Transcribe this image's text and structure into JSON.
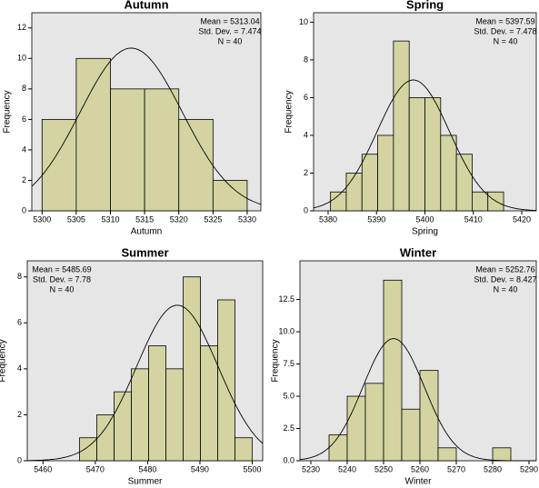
{
  "chart_data": [
    {
      "type": "histogram",
      "title": "Autumn",
      "xlabel": "Autumn",
      "ylabel": "Frequency",
      "bins": [
        5300,
        5305,
        5310,
        5315,
        5320,
        5325,
        5330
      ],
      "counts": [
        6,
        10,
        8,
        8,
        6,
        2
      ],
      "xlim": [
        5298.5,
        5332
      ],
      "xticks": [
        5300,
        5305,
        5310,
        5315,
        5320,
        5325,
        5330
      ],
      "ylim": [
        0,
        13
      ],
      "yticks": [
        0,
        2,
        4,
        6,
        8,
        10,
        12
      ],
      "annotations": [
        "Mean = 5313.04",
        "Std. Dev. = 7.474",
        "N = 40"
      ],
      "annotation_corner": "upper right",
      "normal_curve": {
        "mean": 5313.04,
        "std_dev": 7.474,
        "n": 40
      },
      "color": "#d4d4a2"
    },
    {
      "type": "histogram",
      "title": "Spring",
      "xlabel": "Spring",
      "ylabel": "Frequency",
      "bins": [
        5380.5,
        5383.75,
        5387,
        5390.25,
        5393.5,
        5396.75,
        5400,
        5403.25,
        5406.5,
        5409.75,
        5413,
        5416.25
      ],
      "counts": [
        1,
        2,
        3,
        4,
        9,
        6,
        6,
        4,
        3,
        1,
        1
      ],
      "xlim": [
        5377,
        5423
      ],
      "xticks": [
        5380,
        5390,
        5400,
        5410,
        5420
      ],
      "ylim": [
        0,
        10.5
      ],
      "yticks": [
        0,
        2,
        4,
        6,
        8,
        10
      ],
      "annotations": [
        "Mean = 5397.59",
        "Std. Dev. = 7.478",
        "N = 40"
      ],
      "annotation_corner": "upper right",
      "normal_curve": {
        "mean": 5397.59,
        "std_dev": 7.478,
        "n": 40
      },
      "color": "#d4d4a2"
    },
    {
      "type": "histogram",
      "title": "Summer",
      "xlabel": "Summer",
      "ylabel": "Frequency",
      "bins": [
        5467,
        5470.3,
        5473.6,
        5476.9,
        5480.2,
        5483.5,
        5486.8,
        5490.1,
        5493.4,
        5496.7,
        5500
      ],
      "counts": [
        1,
        2,
        3,
        4,
        5,
        4,
        8,
        5,
        7,
        1
      ],
      "xlim": [
        5457,
        5502
      ],
      "xticks": [
        5460,
        5470,
        5480,
        5490,
        5500
      ],
      "ylim": [
        0,
        8.7
      ],
      "yticks": [
        0,
        2,
        4,
        6,
        8
      ],
      "annotations": [
        "Mean = 5485.69",
        "Std. Dev. = 7.78",
        "N = 40"
      ],
      "annotation_corner": "upper left",
      "normal_curve": {
        "mean": 5485.69,
        "std_dev": 7.78,
        "n": 40
      },
      "color": "#d4d4a2"
    },
    {
      "type": "histogram",
      "title": "Winter",
      "xlabel": "Winter",
      "ylabel": "Frequency",
      "bins": [
        5235,
        5240,
        5245,
        5250,
        5255,
        5260,
        5265,
        5270,
        5275,
        5280,
        5285
      ],
      "counts": [
        2,
        5,
        6,
        14,
        4,
        7,
        1,
        0,
        0,
        1
      ],
      "xlim": [
        5227,
        5292
      ],
      "xticks": [
        5230,
        5240,
        5250,
        5260,
        5270,
        5280,
        5290
      ],
      "ylim": [
        0,
        15.5
      ],
      "yticks": [
        {
          "value": 0,
          "label": "0.0"
        },
        2.5,
        {
          "value": 5,
          "label": "5.0"
        },
        7.5,
        {
          "value": 10,
          "label": "10.0"
        },
        12.5
      ],
      "annotations": [
        "Mean = 5252.76",
        "Std. Dev. = 8.427",
        "N = 40"
      ],
      "annotation_corner": "upper right",
      "normal_curve": {
        "mean": 5252.76,
        "std_dev": 8.427,
        "n": 40
      },
      "color": "#d4d4a2"
    }
  ]
}
